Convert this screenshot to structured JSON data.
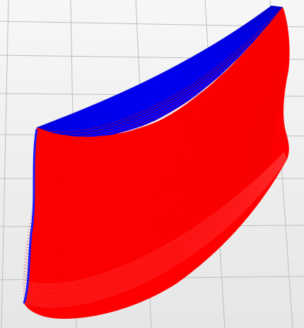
{
  "viewer": {
    "colors": {
      "background_top": "#f7f7f7",
      "background_bottom": "#e6e6e6",
      "grid_line": "#bdbdbd",
      "front_surface": "#ff0000",
      "front_surface_stroke": "#e00000",
      "top_surface": "#0000ff",
      "top_surface_stroke": "#0000b0",
      "back_edge": "#1a1aff"
    },
    "layer_count": 60
  }
}
